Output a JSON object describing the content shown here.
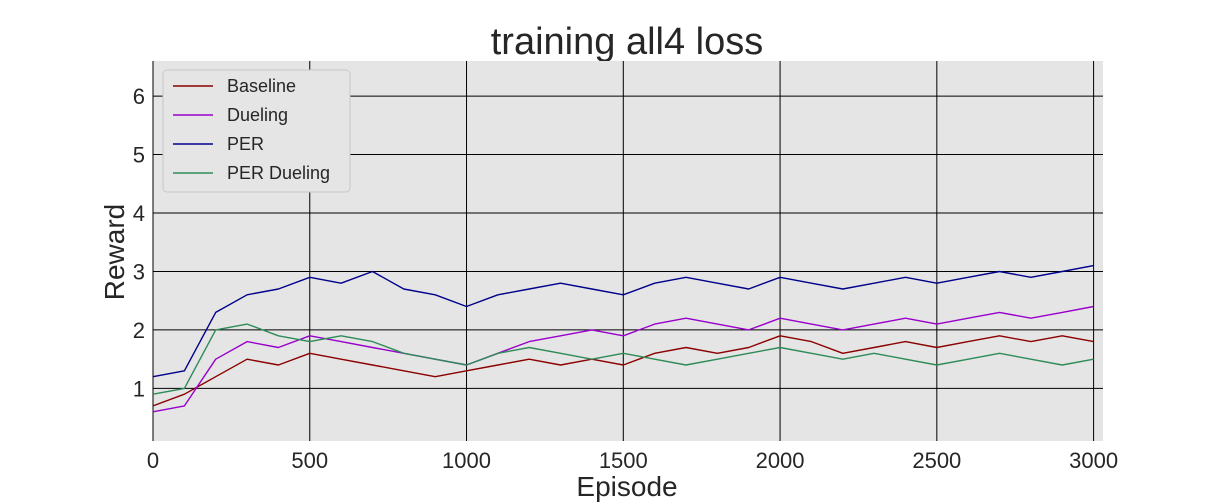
{
  "chart_data": {
    "type": "line",
    "title": "training all4 loss",
    "xlabel": "Episode",
    "ylabel": "Reward",
    "xlim": [
      0,
      3030
    ],
    "ylim": [
      0.1,
      6.6
    ],
    "xticks": [
      0,
      500,
      1000,
      1500,
      2000,
      2500,
      3000
    ],
    "yticks": [
      1,
      2,
      3,
      4,
      5,
      6
    ],
    "grid": true,
    "legend_position": "top-left",
    "background": "#e5e5e5",
    "series": [
      {
        "name": "Baseline",
        "color": "#8b0000",
        "x": [
          0,
          100,
          200,
          300,
          400,
          500,
          600,
          700,
          800,
          900,
          1000,
          1100,
          1200,
          1300,
          1400,
          1500,
          1600,
          1700,
          1800,
          1900,
          2000,
          2100,
          2200,
          2300,
          2400,
          2500,
          2600,
          2700,
          2800,
          2900,
          3000
        ],
        "y": [
          0.7,
          0.9,
          1.2,
          1.5,
          1.4,
          1.6,
          1.5,
          1.4,
          1.3,
          1.2,
          1.3,
          1.4,
          1.5,
          1.4,
          1.5,
          1.4,
          1.6,
          1.7,
          1.6,
          1.7,
          1.9,
          1.8,
          1.6,
          1.7,
          1.8,
          1.7,
          1.8,
          1.9,
          1.8,
          1.9,
          1.8
        ]
      },
      {
        "name": "Dueling",
        "color": "#9900cc",
        "x": [
          0,
          100,
          200,
          300,
          400,
          500,
          600,
          700,
          800,
          900,
          1000,
          1100,
          1200,
          1300,
          1400,
          1500,
          1600,
          1700,
          1800,
          1900,
          2000,
          2100,
          2200,
          2300,
          2400,
          2500,
          2600,
          2700,
          2800,
          2900,
          3000
        ],
        "y": [
          0.6,
          0.7,
          1.5,
          1.8,
          1.7,
          1.9,
          1.8,
          1.7,
          1.6,
          1.5,
          1.4,
          1.6,
          1.8,
          1.9,
          2.0,
          1.9,
          2.1,
          2.2,
          2.1,
          2.0,
          2.2,
          2.1,
          2.0,
          2.1,
          2.2,
          2.1,
          2.2,
          2.3,
          2.2,
          2.3,
          2.4
        ]
      },
      {
        "name": "PER",
        "color": "#00008b",
        "x": [
          0,
          100,
          200,
          300,
          400,
          500,
          600,
          700,
          800,
          900,
          1000,
          1100,
          1200,
          1300,
          1400,
          1500,
          1600,
          1700,
          1800,
          1900,
          2000,
          2100,
          2200,
          2300,
          2400,
          2500,
          2600,
          2700,
          2800,
          2900,
          3000
        ],
        "y": [
          1.2,
          1.3,
          2.3,
          2.6,
          2.7,
          2.9,
          2.8,
          3.0,
          2.7,
          2.6,
          2.4,
          2.6,
          2.7,
          2.8,
          2.7,
          2.6,
          2.8,
          2.9,
          2.8,
          2.7,
          2.9,
          2.8,
          2.7,
          2.8,
          2.9,
          2.8,
          2.9,
          3.0,
          2.9,
          3.0,
          3.1
        ]
      },
      {
        "name": "PER Dueling",
        "color": "#2e8b57",
        "x": [
          0,
          100,
          200,
          300,
          400,
          500,
          600,
          700,
          800,
          900,
          1000,
          1100,
          1200,
          1300,
          1400,
          1500,
          1600,
          1700,
          1800,
          1900,
          2000,
          2100,
          2200,
          2300,
          2400,
          2500,
          2600,
          2700,
          2800,
          2900,
          3000
        ],
        "y": [
          0.9,
          1.0,
          2.0,
          2.1,
          1.9,
          1.8,
          1.9,
          1.8,
          1.6,
          1.5,
          1.4,
          1.6,
          1.7,
          1.6,
          1.5,
          1.6,
          1.5,
          1.4,
          1.5,
          1.6,
          1.7,
          1.6,
          1.5,
          1.6,
          1.5,
          1.4,
          1.5,
          1.6,
          1.5,
          1.4,
          1.5
        ]
      }
    ]
  }
}
